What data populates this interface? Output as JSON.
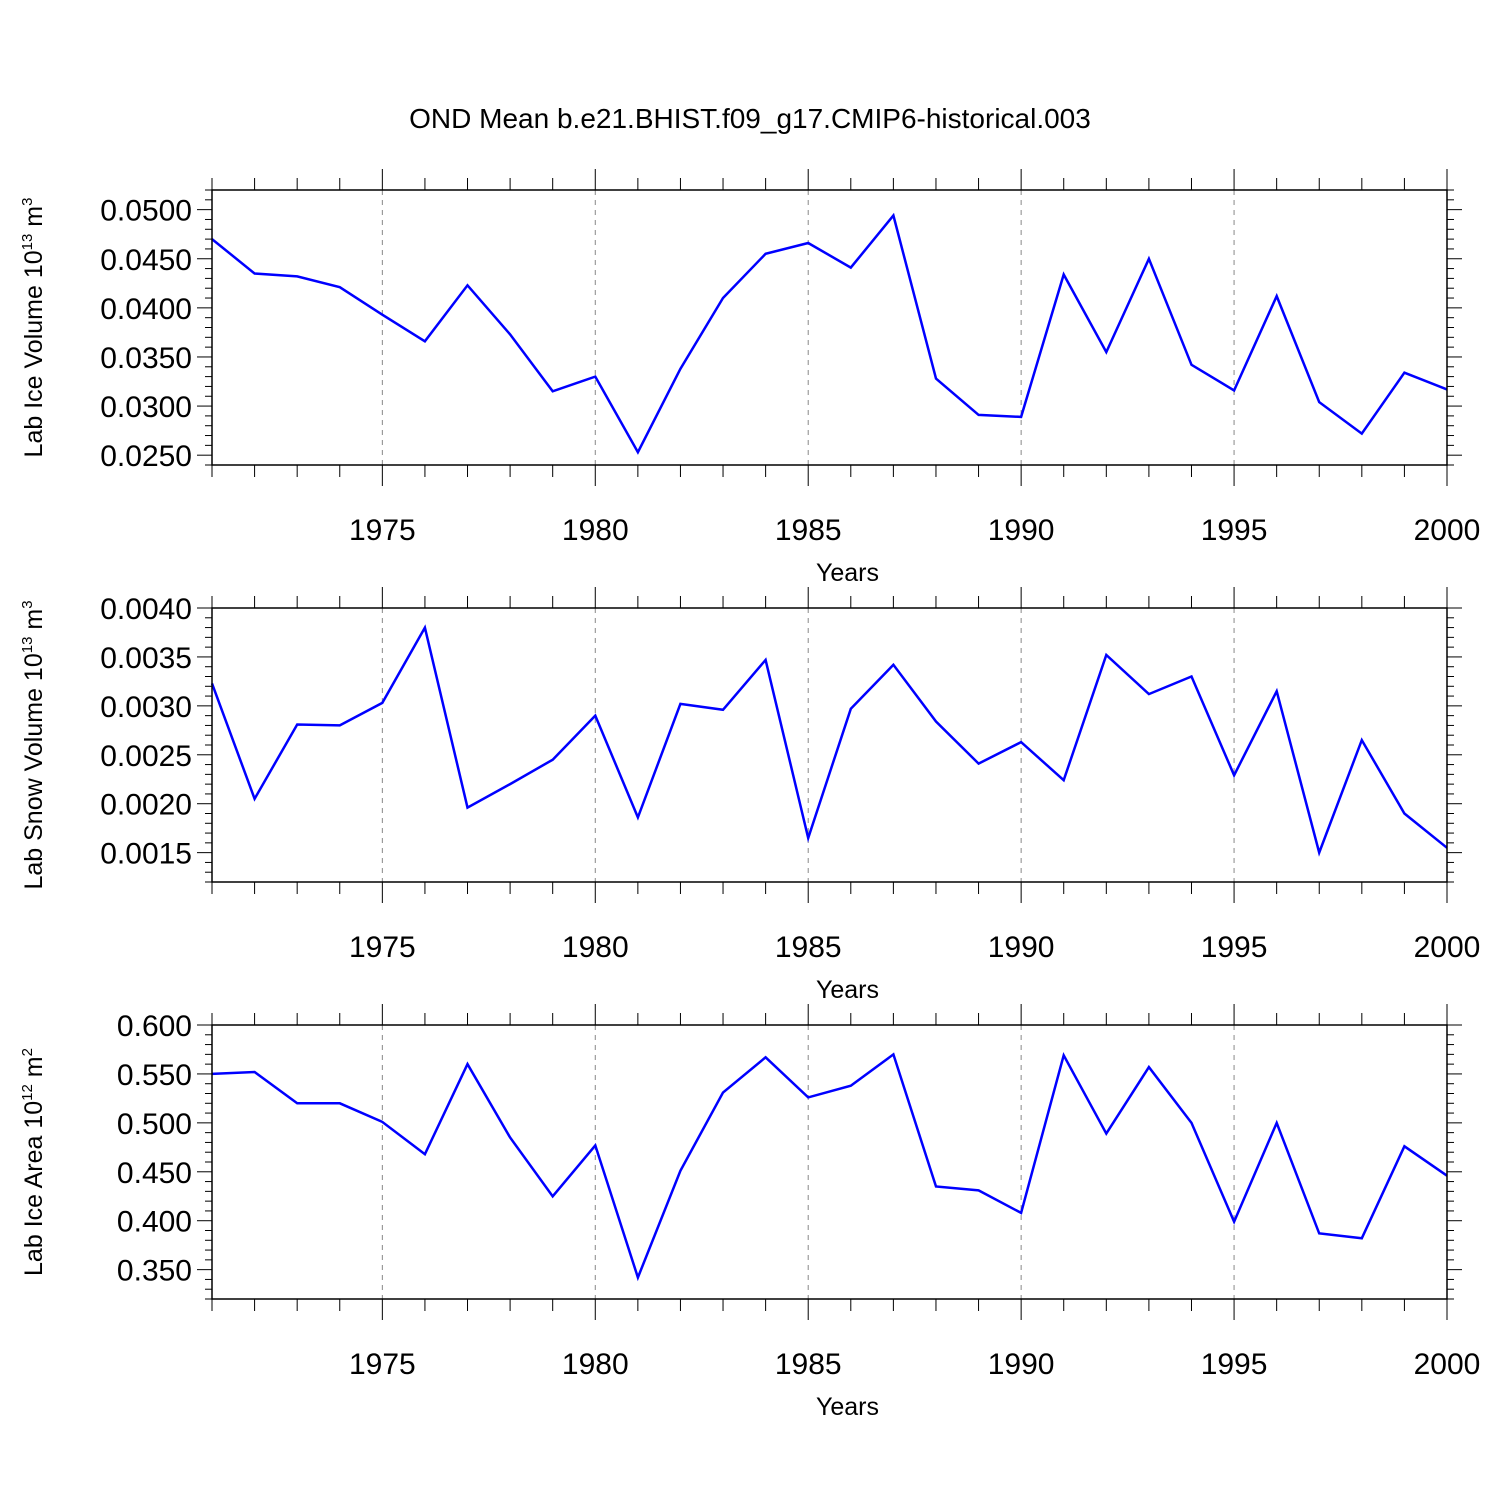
{
  "title": "OND Mean b.e21.BHIST.f09_g17.CMIP6-historical.003",
  "chart_data": [
    {
      "type": "line",
      "title": "OND Mean b.e21.BHIST.f09_g17.CMIP6-historical.003",
      "xlabel": "Years",
      "ylabel": {
        "base": "Lab Ice Volume 10",
        "exp": "13",
        "unit": " m",
        "unit_exp": "3"
      },
      "xlim": [
        1971,
        2000
      ],
      "ylim": [
        0.024,
        0.052
      ],
      "xticks": [
        1975,
        1980,
        1985,
        1990,
        1995,
        2000
      ],
      "yticks": [
        0.025,
        0.03,
        0.035,
        0.04,
        0.045,
        0.05
      ],
      "ytick_labels": [
        "0.0250",
        "0.0300",
        "0.0350",
        "0.0400",
        "0.0450",
        "0.0500"
      ],
      "grid": "vertical dashed at major x ticks",
      "color": "#0000ff",
      "x": [
        1971,
        1972,
        1973,
        1974,
        1975,
        1976,
        1977,
        1978,
        1979,
        1980,
        1981,
        1982,
        1983,
        1984,
        1985,
        1986,
        1987,
        1988,
        1989,
        1990,
        1991,
        1992,
        1993,
        1994,
        1995,
        1996,
        1997,
        1998,
        1999,
        2000
      ],
      "values": [
        0.047,
        0.0435,
        0.0432,
        0.0421,
        0.0393,
        0.0366,
        0.0423,
        0.0373,
        0.0315,
        0.033,
        0.0253,
        0.0338,
        0.041,
        0.0455,
        0.0466,
        0.0441,
        0.0494,
        0.0328,
        0.0291,
        0.0289,
        0.0434,
        0.0355,
        0.045,
        0.0342,
        0.0316,
        0.0412,
        0.0304,
        0.0272,
        0.0334,
        0.0317
      ]
    },
    {
      "type": "line",
      "xlabel": "Years",
      "ylabel": {
        "base": "Lab Snow Volume 10",
        "exp": "13",
        "unit": " m",
        "unit_exp": "3"
      },
      "xlim": [
        1971,
        2000
      ],
      "ylim": [
        0.0012,
        0.004
      ],
      "xticks": [
        1975,
        1980,
        1985,
        1990,
        1995,
        2000
      ],
      "yticks": [
        0.0015,
        0.002,
        0.0025,
        0.003,
        0.0035,
        0.004
      ],
      "ytick_labels": [
        "0.0015",
        "0.0020",
        "0.0025",
        "0.0030",
        "0.0035",
        "0.0040"
      ],
      "grid": "vertical dashed at major x ticks",
      "color": "#0000ff",
      "x": [
        1971,
        1972,
        1973,
        1974,
        1975,
        1976,
        1977,
        1978,
        1979,
        1980,
        1981,
        1982,
        1983,
        1984,
        1985,
        1986,
        1987,
        1988,
        1989,
        1990,
        1991,
        1992,
        1993,
        1994,
        1995,
        1996,
        1997,
        1998,
        1999,
        2000
      ],
      "values": [
        0.00323,
        0.00205,
        0.00281,
        0.0028,
        0.00303,
        0.0038,
        0.00196,
        0.0022,
        0.00245,
        0.0029,
        0.00186,
        0.00302,
        0.00296,
        0.00347,
        0.00165,
        0.00297,
        0.00342,
        0.00284,
        0.00241,
        0.00263,
        0.00224,
        0.00352,
        0.00312,
        0.0033,
        0.00229,
        0.00315,
        0.0015,
        0.00265,
        0.0019,
        0.00155
      ]
    },
    {
      "type": "line",
      "xlabel": "Years",
      "ylabel": {
        "base": "Lab Ice Area 10",
        "exp": "12",
        "unit": " m",
        "unit_exp": "2"
      },
      "xlim": [
        1971,
        2000
      ],
      "ylim": [
        0.32,
        0.6
      ],
      "xticks": [
        1975,
        1980,
        1985,
        1990,
        1995,
        2000
      ],
      "yticks": [
        0.35,
        0.4,
        0.45,
        0.5,
        0.55,
        0.6
      ],
      "ytick_labels": [
        "0.350",
        "0.400",
        "0.450",
        "0.500",
        "0.550",
        "0.600"
      ],
      "grid": "vertical dashed at major x ticks",
      "color": "#0000ff",
      "x": [
        1971,
        1972,
        1973,
        1974,
        1975,
        1976,
        1977,
        1978,
        1979,
        1980,
        1981,
        1982,
        1983,
        1984,
        1985,
        1986,
        1987,
        1988,
        1989,
        1990,
        1991,
        1992,
        1993,
        1994,
        1995,
        1996,
        1997,
        1998,
        1999,
        2000
      ],
      "values": [
        0.55,
        0.552,
        0.52,
        0.52,
        0.501,
        0.468,
        0.56,
        0.485,
        0.425,
        0.477,
        0.342,
        0.451,
        0.531,
        0.567,
        0.526,
        0.538,
        0.57,
        0.435,
        0.431,
        0.408,
        0.569,
        0.489,
        0.557,
        0.5,
        0.399,
        0.5,
        0.387,
        0.382,
        0.476,
        0.446
      ]
    }
  ]
}
